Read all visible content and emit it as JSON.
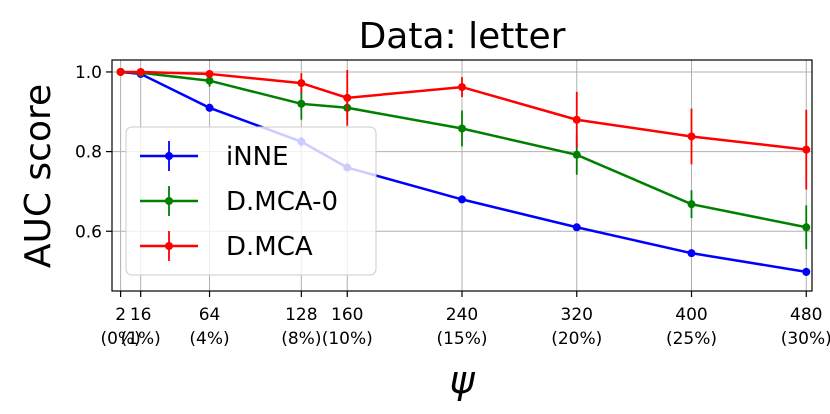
{
  "chart_data": {
    "type": "line",
    "title": "Data: letter",
    "ylabel": "AUC score",
    "xlabel": "ψ",
    "ylim": [
      0.45,
      1.03
    ],
    "xlim": [
      -4,
      484
    ],
    "grid": true,
    "legend_position": "center-left",
    "y_ticks": [
      0.6,
      0.8,
      1.0
    ],
    "y_tick_labels": [
      "0.6",
      "0.8",
      "1.0"
    ],
    "x_ticks": [
      {
        "x": 2,
        "line1": "2",
        "line2": "(0%)"
      },
      {
        "x": 16,
        "line1": "16",
        "line2": "(1%)"
      },
      {
        "x": 64,
        "line1": "64",
        "line2": "(4%)"
      },
      {
        "x": 128,
        "line1": "128",
        "line2": "(8%)"
      },
      {
        "x": 160,
        "line1": "160",
        "line2": "(10%)"
      },
      {
        "x": 240,
        "line1": "240",
        "line2": "(15%)"
      },
      {
        "x": 320,
        "line1": "320",
        "line2": "(20%)"
      },
      {
        "x": 400,
        "line1": "400",
        "line2": "(25%)"
      },
      {
        "x": 480,
        "line1": "480",
        "line2": "(30%)"
      }
    ],
    "x": [
      2,
      16,
      64,
      128,
      160,
      240,
      320,
      400,
      480
    ],
    "series": [
      {
        "name": "iNNE",
        "color": "#0000ff",
        "values": [
          1.0,
          0.995,
          0.91,
          0.825,
          0.76,
          0.68,
          0.61,
          0.545,
          0.498
        ],
        "errors": [
          0,
          0.004,
          0.01,
          0.012,
          0.008,
          0.006,
          0.005,
          0.008,
          0.01
        ]
      },
      {
        "name": "D.MCA-0",
        "color": "#008000",
        "values": [
          1.0,
          0.998,
          0.978,
          0.92,
          0.91,
          0.858,
          0.792,
          0.668,
          0.61
        ],
        "errors": [
          0,
          0.004,
          0.015,
          0.04,
          0.03,
          0.045,
          0.05,
          0.035,
          0.055
        ]
      },
      {
        "name": "D.MCA",
        "color": "#ff0000",
        "values": [
          1.0,
          1.0,
          0.995,
          0.972,
          0.935,
          0.962,
          0.88,
          0.838,
          0.805
        ],
        "errors": [
          0,
          0.003,
          0.008,
          0.025,
          0.07,
          0.025,
          0.07,
          0.07,
          0.1
        ]
      }
    ]
  }
}
